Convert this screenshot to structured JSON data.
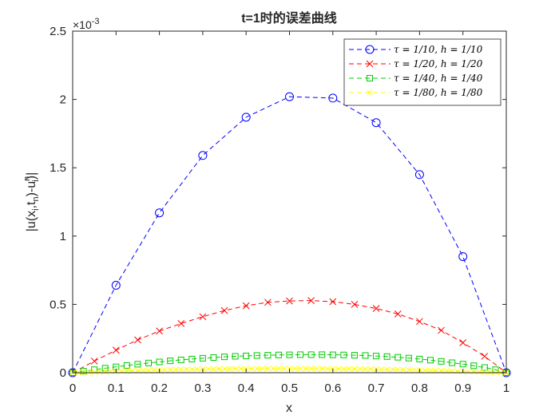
{
  "chart_data": {
    "type": "line",
    "title": "t=1时的误差曲线",
    "xlabel": "x",
    "ylabel": "|u(x_i,t_n)-u_i^n|",
    "ylabel_parts": {
      "a": "|u(x",
      "a_sub": "i",
      "b": ",t",
      "b_sub": "n",
      "c": ")-u",
      "c_sup": "n",
      "c_sub": "i",
      "d": ")|"
    },
    "y_exponent": "-3",
    "y_exponent_prefix": "×10",
    "xlim": [
      0,
      1
    ],
    "ylim": [
      0,
      2.5
    ],
    "xticks": [
      "0",
      "0.1",
      "0.2",
      "0.3",
      "0.4",
      "0.5",
      "0.6",
      "0.7",
      "0.8",
      "0.9",
      "1"
    ],
    "yticks": [
      "0",
      "0.5",
      "1",
      "1.5",
      "2",
      "2.5"
    ],
    "grid": false,
    "legend_position": "top-right",
    "series": [
      {
        "name": "τ = 1/10, h = 1/10",
        "color": "#0000ff",
        "marker": "circle",
        "x": [
          0,
          0.1,
          0.2,
          0.3,
          0.4,
          0.5,
          0.6,
          0.7,
          0.8,
          0.9,
          1.0
        ],
        "y": [
          0,
          0.64,
          1.17,
          1.59,
          1.87,
          2.02,
          2.01,
          1.83,
          1.45,
          0.85,
          0
        ]
      },
      {
        "name": "τ = 1/20, h = 1/20",
        "color": "#ff0000",
        "marker": "x",
        "x": [
          0,
          0.05,
          0.1,
          0.15,
          0.2,
          0.25,
          0.3,
          0.35,
          0.4,
          0.45,
          0.5,
          0.55,
          0.6,
          0.65,
          0.7,
          0.75,
          0.8,
          0.85,
          0.9,
          0.95,
          1.0
        ],
        "y": [
          0,
          0.085,
          0.165,
          0.24,
          0.305,
          0.36,
          0.41,
          0.455,
          0.49,
          0.515,
          0.525,
          0.528,
          0.52,
          0.5,
          0.47,
          0.43,
          0.375,
          0.31,
          0.22,
          0.12,
          0
        ]
      },
      {
        "name": "τ = 1/40, h = 1/40",
        "color": "#00cc00",
        "marker": "square",
        "x": [
          0,
          0.025,
          0.05,
          0.075,
          0.1,
          0.125,
          0.15,
          0.175,
          0.2,
          0.225,
          0.25,
          0.275,
          0.3,
          0.325,
          0.35,
          0.375,
          0.4,
          0.425,
          0.45,
          0.475,
          0.5,
          0.525,
          0.55,
          0.575,
          0.6,
          0.625,
          0.65,
          0.675,
          0.7,
          0.725,
          0.75,
          0.775,
          0.8,
          0.825,
          0.85,
          0.875,
          0.9,
          0.925,
          0.95,
          0.975,
          1.0
        ],
        "y": [
          0,
          0.011,
          0.022,
          0.033,
          0.043,
          0.053,
          0.062,
          0.071,
          0.079,
          0.087,
          0.094,
          0.1,
          0.106,
          0.111,
          0.116,
          0.12,
          0.123,
          0.126,
          0.128,
          0.13,
          0.131,
          0.132,
          0.132,
          0.132,
          0.131,
          0.13,
          0.128,
          0.126,
          0.122,
          0.118,
          0.113,
          0.107,
          0.1,
          0.092,
          0.083,
          0.073,
          0.063,
          0.051,
          0.038,
          0.022,
          0
        ]
      },
      {
        "name": "τ = 1/80, h = 1/80",
        "color": "#ffff00",
        "marker": "x",
        "x": [
          0,
          0.0125,
          0.025,
          0.0375,
          0.05,
          0.0625,
          0.075,
          0.0875,
          0.1,
          0.1125,
          0.125,
          0.1375,
          0.15,
          0.1625,
          0.175,
          0.1875,
          0.2,
          0.2125,
          0.225,
          0.2375,
          0.25,
          0.2625,
          0.275,
          0.2875,
          0.3,
          0.3125,
          0.325,
          0.3375,
          0.35,
          0.3625,
          0.375,
          0.3875,
          0.4,
          0.4125,
          0.425,
          0.4375,
          0.45,
          0.4625,
          0.475,
          0.4875,
          0.5,
          0.5125,
          0.525,
          0.5375,
          0.55,
          0.5625,
          0.575,
          0.5875,
          0.6,
          0.6125,
          0.625,
          0.6375,
          0.65,
          0.6625,
          0.675,
          0.6875,
          0.7,
          0.7125,
          0.725,
          0.7375,
          0.75,
          0.7625,
          0.775,
          0.7875,
          0.8,
          0.8125,
          0.825,
          0.8375,
          0.85,
          0.8625,
          0.875,
          0.8875,
          0.9,
          0.9125,
          0.925,
          0.9375,
          0.95,
          0.9625,
          0.975,
          0.9875,
          1.0
        ],
        "y": [
          0,
          0.0016,
          0.003,
          0.0045,
          0.006,
          0.0074,
          0.0088,
          0.0102,
          0.0115,
          0.0128,
          0.014,
          0.0152,
          0.0164,
          0.0175,
          0.0186,
          0.0196,
          0.0206,
          0.0215,
          0.0224,
          0.0233,
          0.0241,
          0.0248,
          0.0255,
          0.0262,
          0.0268,
          0.0274,
          0.0279,
          0.0284,
          0.0288,
          0.0292,
          0.0296,
          0.0299,
          0.0302,
          0.0304,
          0.0306,
          0.0308,
          0.0309,
          0.031,
          0.031,
          0.031,
          0.031,
          0.031,
          0.031,
          0.0309,
          0.0308,
          0.0307,
          0.0305,
          0.0303,
          0.03,
          0.0297,
          0.0294,
          0.029,
          0.0286,
          0.0281,
          0.0276,
          0.027,
          0.0264,
          0.0258,
          0.0251,
          0.0243,
          0.0235,
          0.0226,
          0.0217,
          0.0207,
          0.0197,
          0.0186,
          0.0175,
          0.0163,
          0.0151,
          0.0138,
          0.0125,
          0.0111,
          0.0097,
          0.0083,
          0.0069,
          0.0055,
          0.0042,
          0.003,
          0.0019,
          0.0009,
          0
        ]
      }
    ]
  }
}
